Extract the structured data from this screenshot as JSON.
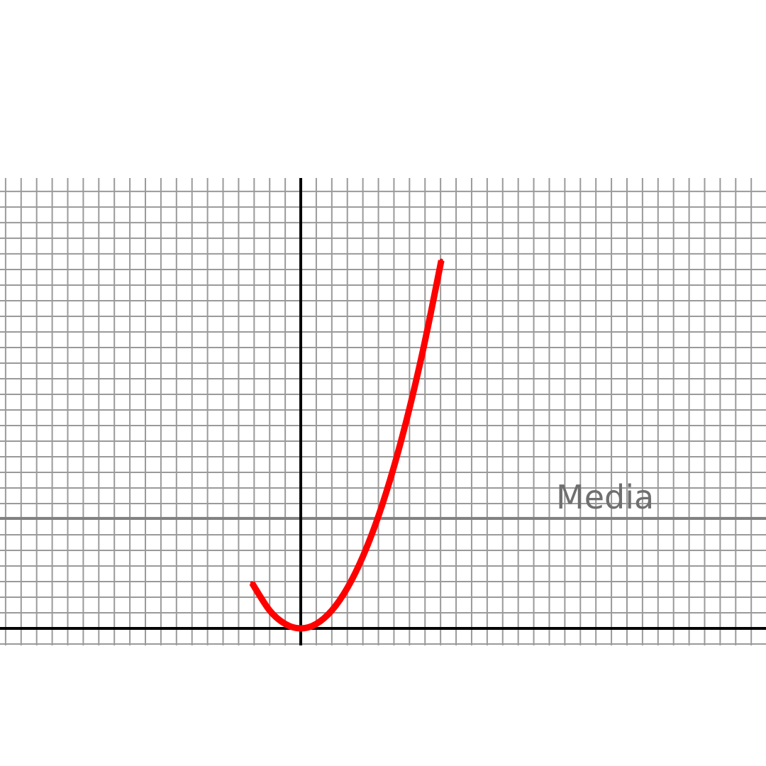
{
  "chart_data": {
    "type": "line",
    "title": "",
    "xlabel": "",
    "ylabel": "",
    "grid": true,
    "xlim": [
      -19.36,
      29.95
    ],
    "ylim": [
      -1.09,
      28.86
    ],
    "series": [
      {
        "color": "#ff0000",
        "x": [
          -3.14,
          -2,
          -1,
          0,
          1,
          2,
          3,
          4,
          5,
          6,
          7,
          8,
          9.05
        ],
        "y": [
          2.91,
          1.15,
          0.29,
          0,
          0.29,
          1.15,
          2.59,
          4.61,
          7.19,
          10.36,
          14.1,
          18.42,
          23.58
        ]
      }
    ],
    "reference_lines": [
      {
        "orientation": "horizontal",
        "y": 7.05,
        "color": "#808080",
        "label": "Media"
      }
    ],
    "axes_color": "#000000",
    "grid_color": "#9a9a9a"
  }
}
